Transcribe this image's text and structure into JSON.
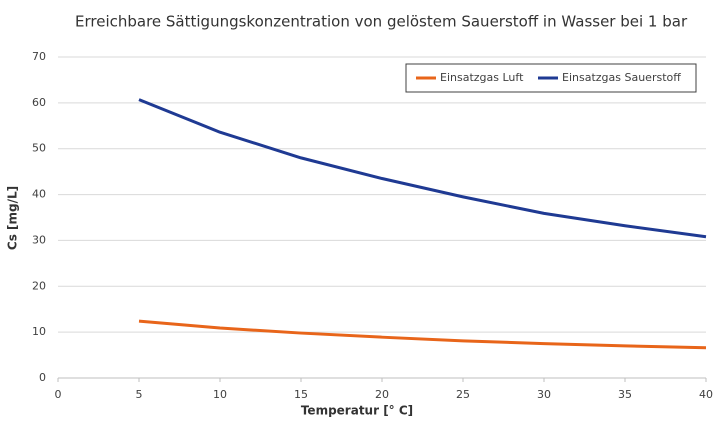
{
  "chart_data": {
    "type": "line",
    "title": "Erreichbare Sättigungskonzentration von gelöstem Sauerstoff in Wasser bei 1 bar",
    "x_label": "Temperatur [° C]",
    "y_label": "Cs [mg/L]",
    "x": [
      5,
      10,
      15,
      20,
      25,
      30,
      35,
      40
    ],
    "series": [
      {
        "name": "Einsatzgas Luft",
        "color": "#e8651a",
        "values": [
          12.4,
          10.9,
          9.8,
          8.9,
          8.1,
          7.5,
          7.0,
          6.6
        ]
      },
      {
        "name": "Einsatzgas Sauerstoff",
        "color": "#1f3a93",
        "values": [
          60.7,
          53.6,
          48.0,
          43.5,
          39.5,
          35.9,
          33.2,
          30.8
        ]
      }
    ],
    "xlim": [
      0,
      40
    ],
    "xticks": [
      0,
      5,
      10,
      15,
      20,
      25,
      30,
      35,
      40
    ],
    "ylim": [
      0,
      70
    ],
    "yticks": [
      0,
      10,
      20,
      30,
      40,
      50,
      60,
      70
    ],
    "grid": true,
    "legend": "top-right"
  }
}
